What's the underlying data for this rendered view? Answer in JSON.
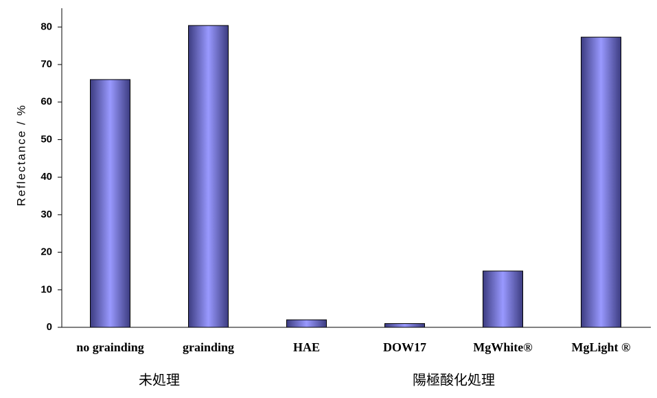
{
  "chart_data": {
    "type": "bar",
    "y_label": "Reflectance  /  %",
    "groups": [
      {
        "label": "未処理",
        "categories": [
          "no grainding",
          "grainding"
        ],
        "values": [
          66,
          80.4
        ]
      },
      {
        "label": "陽極酸化処理",
        "categories": [
          "HAE",
          "DOW17",
          "MgWhite®",
          "MgLight ®"
        ],
        "values": [
          2,
          1,
          15,
          77.3
        ]
      }
    ],
    "color": "#9999ff",
    "ylim": [
      0,
      85
    ],
    "yticks": [
      0,
      10,
      20,
      30,
      40,
      50,
      60,
      70,
      80
    ],
    "grid": false
  }
}
